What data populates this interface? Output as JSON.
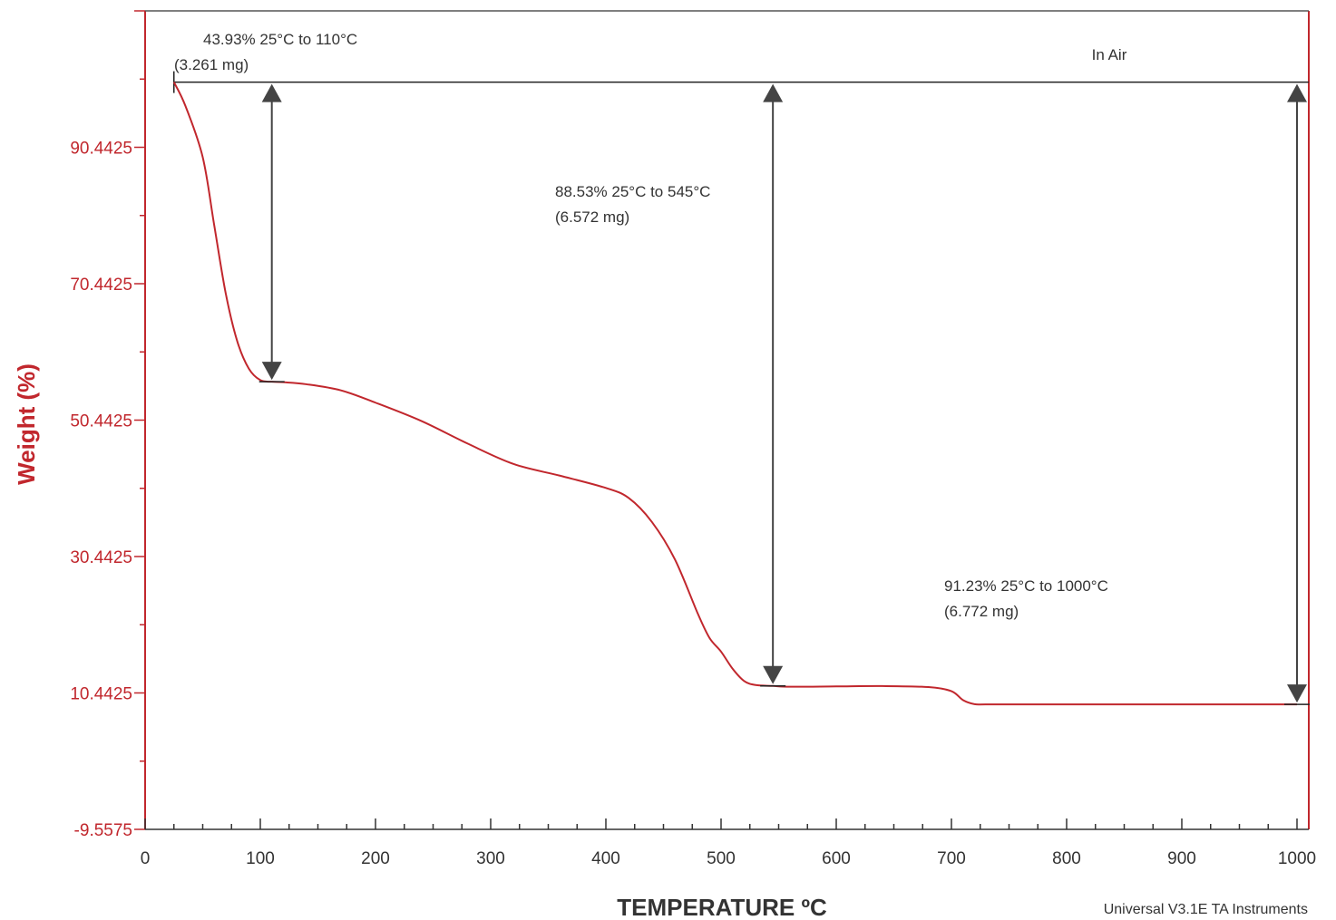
{
  "colors": {
    "accent": "#c1272d",
    "ink": "#333333",
    "arrow": "#444444"
  },
  "chart_data": {
    "type": "line",
    "xlabel": "TEMPERATURE ºC",
    "ylabel": "Weight (%)",
    "xlim": [
      0,
      1000
    ],
    "ylim": [
      -9.5575,
      110.4425
    ],
    "x_ticks": [
      0,
      100,
      200,
      300,
      400,
      500,
      600,
      700,
      800,
      900,
      1000
    ],
    "y_ticks": [
      "-9.5575",
      "10.4425",
      "30.4425",
      "50.4425",
      "70.4425",
      "90.4425"
    ],
    "grid": false,
    "series": [
      {
        "name": "",
        "x": [
          25,
          35,
          50,
          60,
          70,
          80,
          90,
          100,
          110,
          120,
          140,
          170,
          200,
          240,
          280,
          320,
          360,
          400,
          420,
          440,
          460,
          480,
          490,
          500,
          510,
          520,
          530,
          545,
          560,
          600,
          640,
          680,
          700,
          710,
          720,
          730,
          760,
          800,
          900,
          1000
        ],
        "y": [
          100,
          96.5,
          89,
          79,
          69,
          62,
          58,
          56.3,
          56.07,
          56.0,
          55.7,
          54.8,
          53.0,
          50.3,
          47.0,
          44.0,
          42.3,
          40.5,
          39.0,
          35.5,
          30.0,
          22.0,
          18.5,
          16.5,
          14.0,
          12.2,
          11.6,
          11.47,
          11.35,
          11.4,
          11.45,
          11.3,
          10.7,
          9.4,
          8.8,
          8.77,
          8.77,
          8.77,
          8.77,
          8.77
        ]
      }
    ],
    "baseline_weight": 100,
    "annotations": [
      {
        "line1": "43.93% 25°C to 110°C",
        "line2": "(3.261 mg)",
        "from_x": 110,
        "from_y": 100,
        "to_y": 56.07
      },
      {
        "line1": "88.53% 25°C to 545°C",
        "line2": "(6.572 mg)",
        "from_x": 545,
        "from_y": 100,
        "to_y": 11.47
      },
      {
        "line1": "91.23% 25°C to 1000°C",
        "line2": "(6.772 mg)",
        "from_x": 1000,
        "from_y": 100,
        "to_y": 8.77
      }
    ],
    "condition_label": "In Air",
    "footer": "Universal V3.1E TA Instruments"
  }
}
